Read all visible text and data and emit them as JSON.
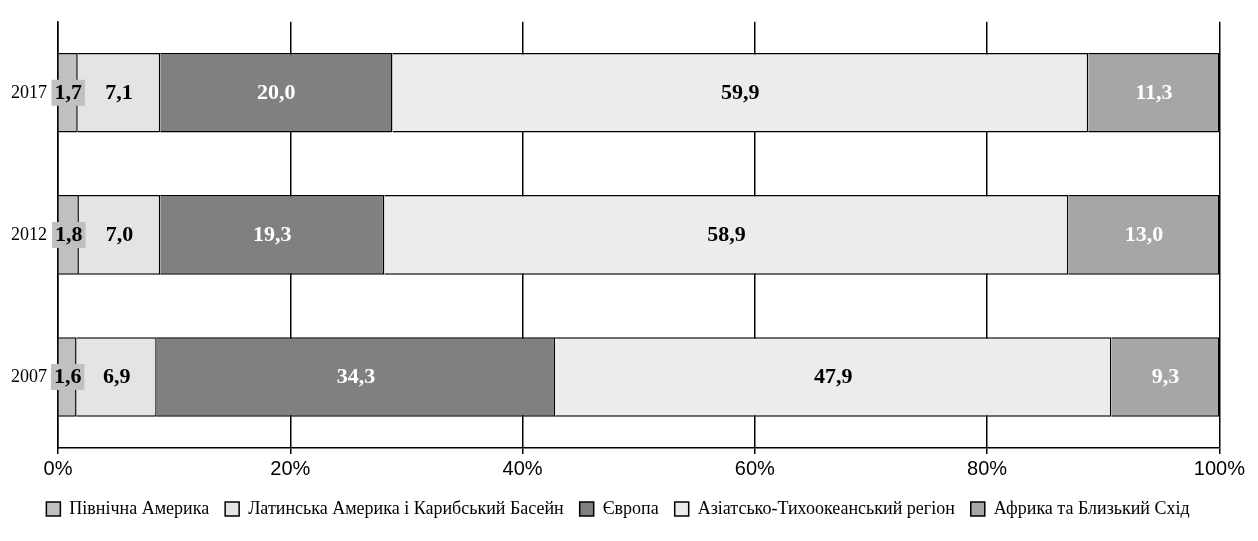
{
  "chart_data": {
    "type": "bar",
    "orientation": "horizontal",
    "stacked": true,
    "categories": [
      "2017",
      "2012",
      "2007"
    ],
    "series": [
      {
        "name": "Північна Америка",
        "color": "#c0c0c0",
        "values": [
          1.7,
          1.8,
          1.6
        ],
        "value_labels": [
          "1,7",
          "1,8",
          "1,6"
        ]
      },
      {
        "name": "Латинська Америка і Карибський Басейн",
        "color": "#e4e4e4",
        "values": [
          7.1,
          7.0,
          6.9
        ],
        "value_labels": [
          "7,1",
          "7,0",
          "6,9"
        ]
      },
      {
        "name": "Європа",
        "color": "#808080",
        "values": [
          20.0,
          19.3,
          34.3
        ],
        "value_labels": [
          "20,0",
          "19,3",
          "34,3"
        ]
      },
      {
        "name": "Азіатсько-Тихоокеанський регіон",
        "color": "#ececec",
        "values": [
          59.9,
          58.9,
          47.9
        ],
        "value_labels": [
          "59,9",
          "58,9",
          "47,9"
        ]
      },
      {
        "name": "Африка та Близький Схід",
        "color": "#a6a6a6",
        "values": [
          11.3,
          13.0,
          9.3
        ],
        "value_labels": [
          "11,3",
          "13,0",
          "9,3"
        ]
      }
    ],
    "xlim": [
      0,
      100
    ],
    "xticks": [
      {
        "value": 0,
        "label": "0%"
      },
      {
        "value": 20,
        "label": "20%"
      },
      {
        "value": 40,
        "label": "40%"
      },
      {
        "value": 60,
        "label": "60%"
      },
      {
        "value": 80,
        "label": "80%"
      },
      {
        "value": 100,
        "label": "100%"
      }
    ],
    "grid": "x",
    "legend": "bottom"
  }
}
